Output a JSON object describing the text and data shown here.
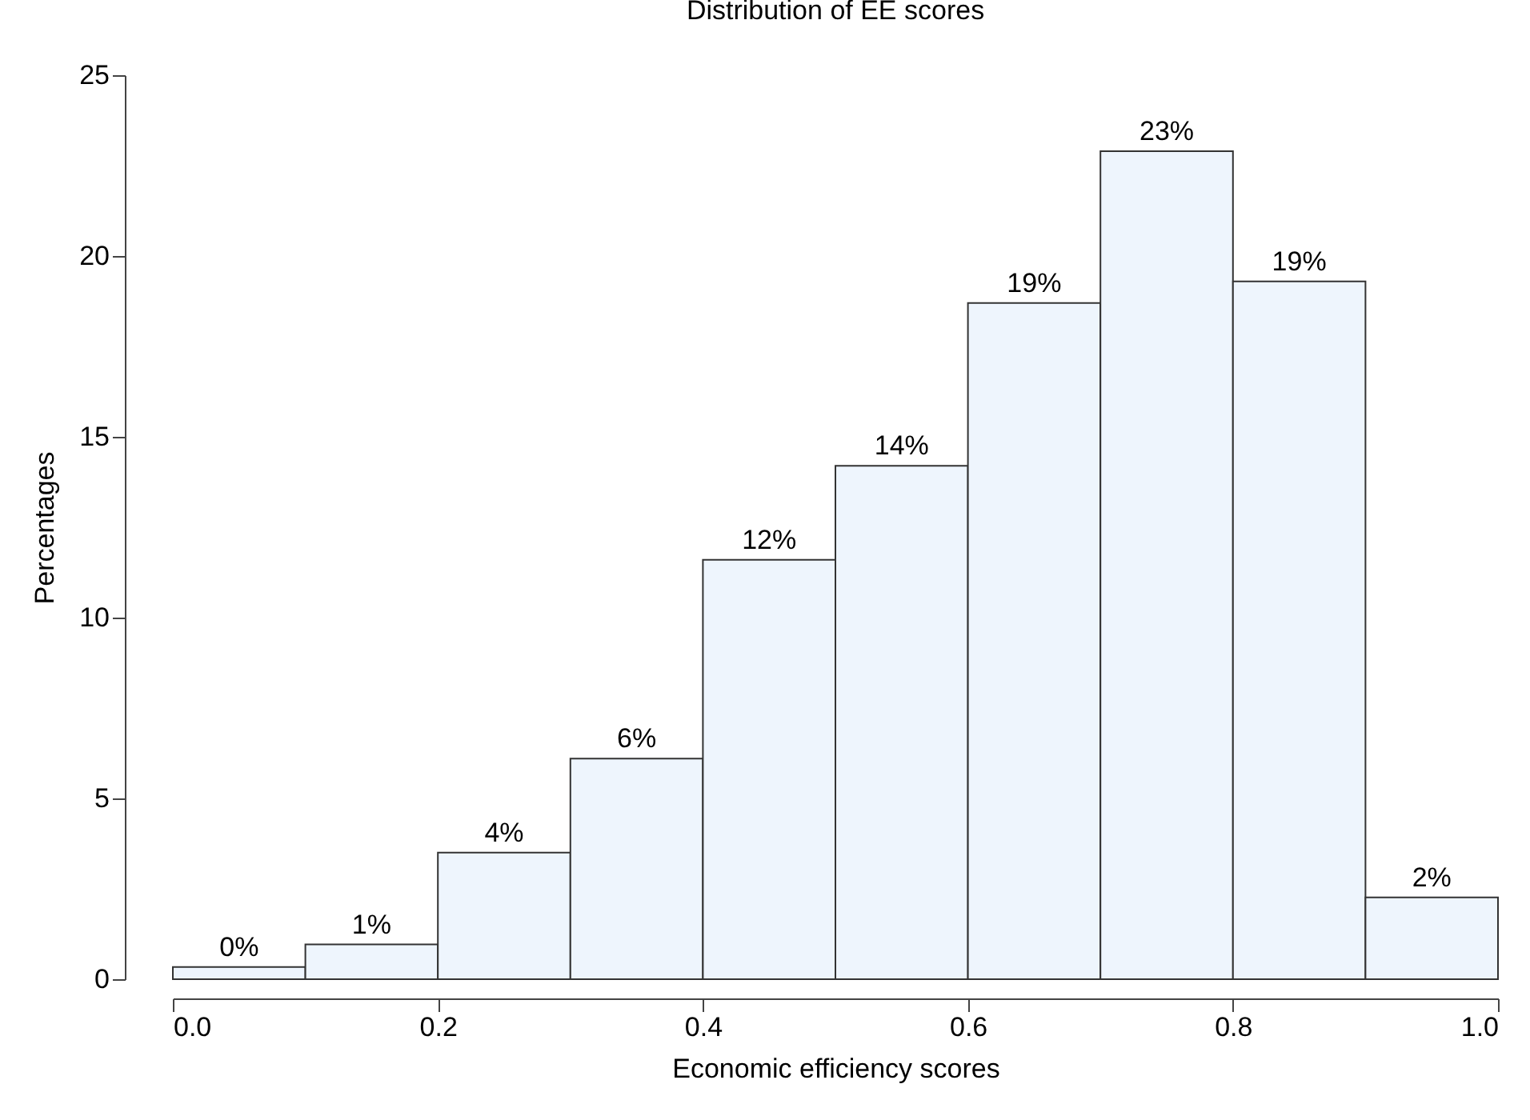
{
  "chart_data": {
    "type": "histogram",
    "title": "Distribution of EE scores",
    "xlabel": "Economic efficiency scores",
    "ylabel": "Percentages",
    "bins": [
      0,
      0.1,
      0.2,
      0.3,
      0.4,
      0.5,
      0.6,
      0.7,
      0.8,
      0.9,
      1.0
    ],
    "values": [
      0.34,
      0.96,
      3.5,
      6.1,
      11.6,
      14.2,
      18.7,
      22.9,
      19.3,
      2.26
    ],
    "value_labels": [
      "0%",
      "1%",
      "4%",
      "6%",
      "12%",
      "14%",
      "19%",
      "23%",
      "19%",
      "2%"
    ],
    "color": "#eef5fd",
    "xlim": [
      0,
      1
    ],
    "xticks": [
      {
        "value": 0,
        "label": "0.0"
      },
      {
        "value": 0.2,
        "label": "0.2"
      },
      {
        "value": 0.4,
        "label": "0.4"
      },
      {
        "value": 0.6,
        "label": "0.6"
      },
      {
        "value": 0.8,
        "label": "0.8"
      },
      {
        "value": 1,
        "label": "1.0"
      }
    ],
    "ylim": [
      0,
      25
    ],
    "yticks": [
      0,
      5,
      10,
      15,
      20,
      25
    ],
    "grid": false
  }
}
